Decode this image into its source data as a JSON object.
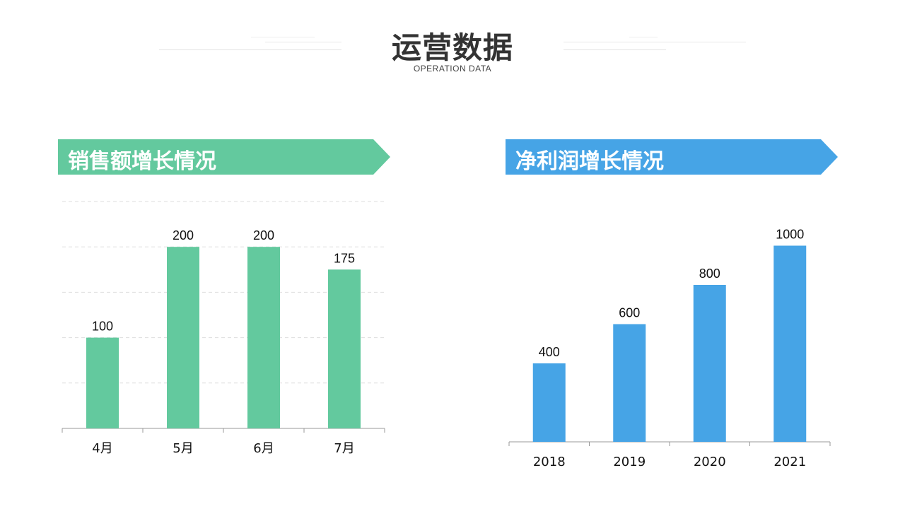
{
  "header": {
    "title": "运营数据",
    "subtitle": "OPERATION DATA"
  },
  "colors": {
    "green": "#63c99e",
    "blue": "#46a4e6",
    "title": "#333333",
    "grid": "#dddddd",
    "axis": "#999999"
  },
  "panels": {
    "left": {
      "banner": "销售额增长情况"
    },
    "right": {
      "banner": "净利润增长情况"
    }
  },
  "chart_data": [
    {
      "type": "bar",
      "categories": [
        "4月",
        "5月",
        "6月",
        "7月"
      ],
      "values": [
        100,
        200,
        200,
        175
      ],
      "ylim": [
        0,
        250
      ],
      "gridlines": true,
      "color": "#63c99e"
    },
    {
      "type": "bar",
      "categories": [
        "2018",
        "2019",
        "2020",
        "2021"
      ],
      "values": [
        400,
        600,
        800,
        1000
      ],
      "ylim": [
        0,
        1200
      ],
      "gridlines": false,
      "color": "#46a4e6"
    }
  ]
}
